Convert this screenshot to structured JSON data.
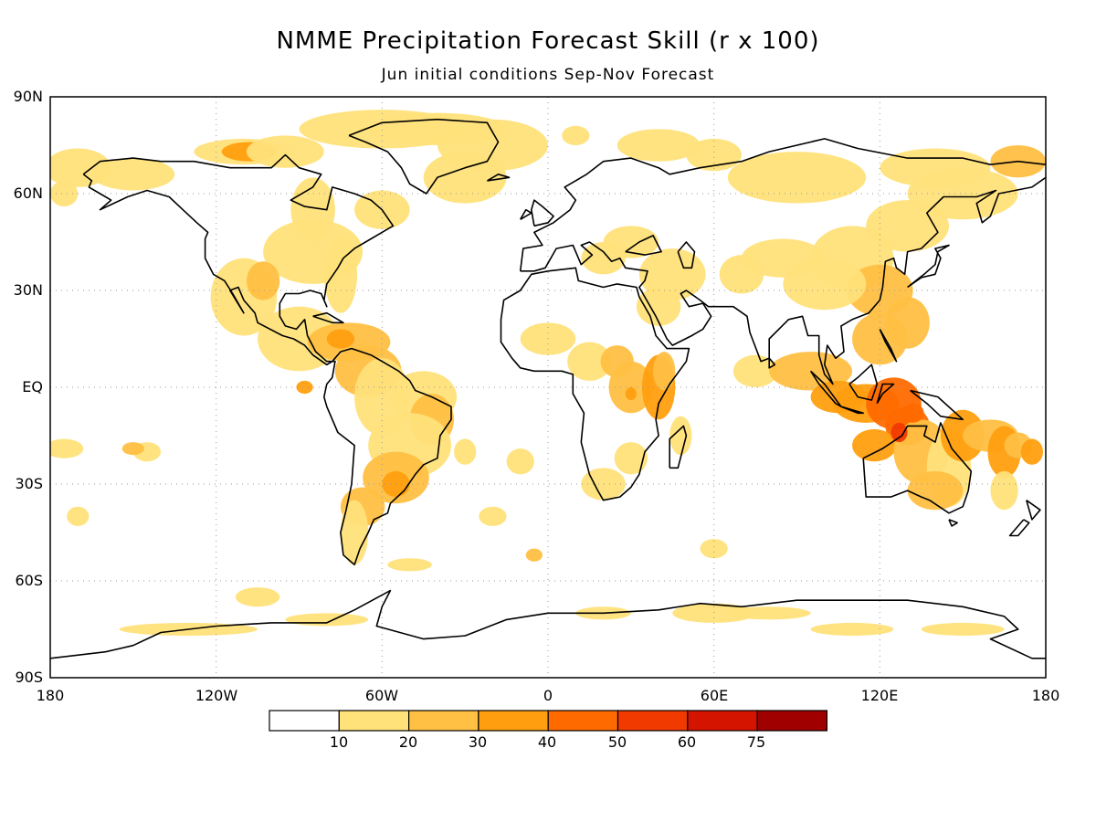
{
  "title": "NMME Precipitation Forecast Skill (r x 100)",
  "subtitle": "Jun initial conditions  Sep-Nov Forecast",
  "lat_labels": [
    "90N",
    "60N",
    "30N",
    "EQ",
    "30S",
    "60S",
    "90S"
  ],
  "lon_labels": [
    "180",
    "120W",
    "60W",
    "0",
    "60E",
    "120E",
    "180"
  ],
  "colorbar": {
    "labels": [
      "10",
      "20",
      "30",
      "40",
      "50",
      "60",
      "75"
    ],
    "colors": [
      "#ffffff",
      "#ffe27a",
      "#ffc043",
      "#ff9f0f",
      "#ff6a00",
      "#f03a00",
      "#d51400",
      "#a00000"
    ]
  },
  "map_data": {
    "type": "gridded-field",
    "lon_range": [
      -180,
      180
    ],
    "lat_range": [
      -90,
      90
    ],
    "grid_spacing_deg": 30,
    "skill_regions": [
      {
        "lon": 130,
        "lat": -10,
        "level": 4
      },
      {
        "lon": 125,
        "lat": -5,
        "level": 3
      },
      {
        "lon": 40,
        "lat": 0,
        "level": 3
      },
      {
        "lon": -75,
        "lat": 15,
        "level": 3
      },
      {
        "lon": -55,
        "lat": -30,
        "level": 3
      },
      {
        "lon": 165,
        "lat": -18,
        "level": 3
      },
      {
        "lon": -110,
        "lat": 72,
        "level": 3
      },
      {
        "lon": -88,
        "lat": 0,
        "level": 3
      },
      {
        "lon": 115,
        "lat": 15,
        "level": 2
      }
    ]
  }
}
